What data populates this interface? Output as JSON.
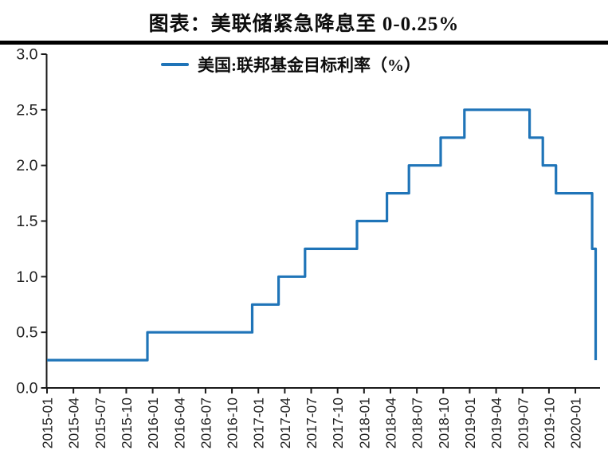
{
  "chart_data": {
    "type": "line",
    "step_style": "post",
    "title": "图表：美联储紧急降息至 0-0.25%",
    "legend_position": "top-center",
    "grid": false,
    "line_color": "#1f74b8",
    "axis_color": "#1a1a1a",
    "label_color": "#1f1f1f",
    "background_color": "#ffffff",
    "ylim": [
      0.0,
      3.0
    ],
    "xlim_months": [
      0,
      62.8
    ],
    "y_tick_values": [
      0.0,
      0.5,
      1.0,
      1.5,
      2.0,
      2.5,
      3.0
    ],
    "y_tick_labels": [
      "0.0",
      "0.5",
      "1.0",
      "1.5",
      "2.0",
      "2.5",
      "3.0"
    ],
    "x_tick_months": [
      0,
      3,
      6,
      9,
      12,
      15,
      18,
      21,
      24,
      27,
      30,
      33,
      36,
      39,
      42,
      45,
      48,
      51,
      54,
      57,
      60
    ],
    "x_tick_labels": [
      "2015-01",
      "2015-04",
      "2015-07",
      "2015-10",
      "2016-01",
      "2016-04",
      "2016-07",
      "2016-10",
      "2017-01",
      "2017-04",
      "2017-07",
      "2017-10",
      "2018-01",
      "2018-04",
      "2018-07",
      "2018-10",
      "2019-01",
      "2019-04",
      "2019-07",
      "2019-10",
      "2020-01"
    ],
    "series": [
      {
        "name": "美国:联邦基金目标利率（%）",
        "color": "#1f74b8",
        "points": [
          {
            "date": "2015-01",
            "x_months": 0,
            "value": 0.25
          },
          {
            "date": "2015-12",
            "x_months": 11.4,
            "value": 0.5
          },
          {
            "date": "2016-12",
            "x_months": 23.3,
            "value": 0.75
          },
          {
            "date": "2017-03",
            "x_months": 26.3,
            "value": 1.0
          },
          {
            "date": "2017-06",
            "x_months": 29.3,
            "value": 1.25
          },
          {
            "date": "2017-12",
            "x_months": 35.2,
            "value": 1.5
          },
          {
            "date": "2018-03",
            "x_months": 38.6,
            "value": 1.75
          },
          {
            "date": "2018-06",
            "x_months": 41.1,
            "value": 2.0
          },
          {
            "date": "2018-09",
            "x_months": 44.7,
            "value": 2.25
          },
          {
            "date": "2018-12",
            "x_months": 47.4,
            "value": 2.5
          },
          {
            "date": "2019-08",
            "x_months": 54.8,
            "value": 2.25
          },
          {
            "date": "2019-09",
            "x_months": 56.3,
            "value": 2.0
          },
          {
            "date": "2019-10",
            "x_months": 57.8,
            "value": 1.75
          },
          {
            "date": "2020-03",
            "x_months": 61.9,
            "value": 1.25
          },
          {
            "date": "2020-03",
            "x_months": 62.3,
            "value": 0.25
          }
        ]
      }
    ]
  }
}
